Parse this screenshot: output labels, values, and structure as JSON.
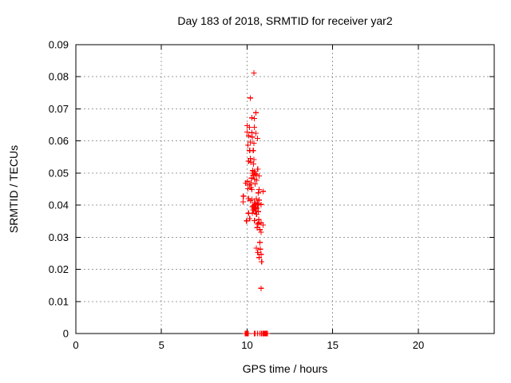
{
  "chart_data": {
    "type": "scatter",
    "title": "Day 183 of 2018, SRMTID for receiver yar2",
    "xlabel": "GPS time / hours",
    "ylabel": "SRMTID / TECUs",
    "xlim": [
      0,
      24.43
    ],
    "ylim": [
      0,
      0.09
    ],
    "x_ticks": [
      0,
      5,
      10,
      15,
      20
    ],
    "x_tick_labels": [
      "0",
      "5",
      "10",
      "15",
      "20"
    ],
    "y_ticks": [
      0,
      0.01,
      0.02,
      0.03,
      0.04,
      0.05,
      0.06,
      0.07,
      0.08,
      0.09
    ],
    "y_tick_labels": [
      "0",
      "0.01",
      "0.02",
      "0.03",
      "0.04",
      "0.05",
      "0.06",
      "0.07",
      "0.08",
      "0.09"
    ],
    "grid": true,
    "legend": "none",
    "marker": "plus",
    "marker_color": "#ff0000",
    "grid_color": "#9c9c9c",
    "axis_color": "#000000",
    "background_color": "#ffffff",
    "series": [
      {
        "name": "SRMTID",
        "points": [
          [
            10.39,
            0.0812
          ],
          [
            10.19,
            0.0734
          ],
          [
            10.51,
            0.0688
          ],
          [
            10.28,
            0.0672
          ],
          [
            10.42,
            0.067
          ],
          [
            10.0,
            0.0648
          ],
          [
            10.14,
            0.0643
          ],
          [
            10.42,
            0.0643
          ],
          [
            10.0,
            0.0628
          ],
          [
            10.28,
            0.0626
          ],
          [
            10.51,
            0.0624
          ],
          [
            10.09,
            0.0616
          ],
          [
            10.31,
            0.0612
          ],
          [
            10.6,
            0.0608
          ],
          [
            10.19,
            0.0597
          ],
          [
            10.39,
            0.0593
          ],
          [
            10.05,
            0.0587
          ],
          [
            10.15,
            0.057
          ],
          [
            10.36,
            0.057
          ],
          [
            10.18,
            0.0546
          ],
          [
            10.4,
            0.0542
          ],
          [
            10.21,
            0.0534
          ],
          [
            10.38,
            0.0528
          ],
          [
            10.08,
            0.0537
          ],
          [
            10.62,
            0.0512
          ],
          [
            10.33,
            0.0508
          ],
          [
            10.42,
            0.0505
          ],
          [
            10.3,
            0.05
          ],
          [
            10.47,
            0.0498
          ],
          [
            10.54,
            0.0495
          ],
          [
            10.7,
            0.0491
          ],
          [
            10.36,
            0.0493
          ],
          [
            9.92,
            0.0469
          ],
          [
            10.25,
            0.0484
          ],
          [
            10.44,
            0.0481
          ],
          [
            10.56,
            0.0477
          ],
          [
            10.02,
            0.0474
          ],
          [
            10.23,
            0.047
          ],
          [
            10.47,
            0.0466
          ],
          [
            10.15,
            0.0463
          ],
          [
            10.23,
            0.0455
          ],
          [
            10.05,
            0.0451
          ],
          [
            10.28,
            0.0449
          ],
          [
            10.7,
            0.0449
          ],
          [
            10.93,
            0.0443
          ],
          [
            10.65,
            0.0438
          ],
          [
            9.78,
            0.0428
          ],
          [
            10.08,
            0.042
          ],
          [
            10.54,
            0.042
          ],
          [
            10.28,
            0.0418
          ],
          [
            10.7,
            0.0416
          ],
          [
            10.19,
            0.0414
          ],
          [
            9.77,
            0.041
          ],
          [
            10.43,
            0.0408
          ],
          [
            10.62,
            0.0405
          ],
          [
            10.51,
            0.0403
          ],
          [
            10.82,
            0.0402
          ],
          [
            10.64,
            0.04
          ],
          [
            10.36,
            0.0397
          ],
          [
            10.31,
            0.0395
          ],
          [
            10.45,
            0.0392
          ],
          [
            10.4,
            0.0391
          ],
          [
            10.58,
            0.039
          ],
          [
            10.47,
            0.0388
          ],
          [
            10.36,
            0.0385
          ],
          [
            10.5,
            0.0382
          ],
          [
            10.65,
            0.038
          ],
          [
            10.08,
            0.0375
          ],
          [
            10.31,
            0.0375
          ],
          [
            10.55,
            0.0372
          ],
          [
            10.15,
            0.0358
          ],
          [
            10.67,
            0.0355
          ],
          [
            10.43,
            0.0352
          ],
          [
            9.97,
            0.0351
          ],
          [
            10.7,
            0.0345
          ],
          [
            10.82,
            0.0345
          ],
          [
            10.62,
            0.0341
          ],
          [
            10.93,
            0.0338
          ],
          [
            10.58,
            0.033
          ],
          [
            10.74,
            0.0324
          ],
          [
            10.82,
            0.0316
          ],
          [
            10.74,
            0.0284
          ],
          [
            10.54,
            0.0266
          ],
          [
            10.77,
            0.0263
          ],
          [
            10.62,
            0.0252
          ],
          [
            10.81,
            0.0247
          ],
          [
            10.7,
            0.0237
          ],
          [
            10.85,
            0.0224
          ],
          [
            10.82,
            0.0141
          ],
          [
            9.88,
            0
          ],
          [
            9.91,
            0
          ],
          [
            9.94,
            0
          ],
          [
            9.97,
            0
          ],
          [
            10.0,
            0
          ],
          [
            10.03,
            0
          ],
          [
            10.06,
            0
          ],
          [
            10.42,
            0
          ],
          [
            10.46,
            0
          ],
          [
            10.6,
            0
          ],
          [
            10.72,
            0
          ],
          [
            10.81,
            0
          ],
          [
            10.86,
            0
          ],
          [
            10.93,
            0
          ],
          [
            10.98,
            0
          ],
          [
            11.03,
            0
          ],
          [
            11.08,
            0
          ],
          [
            11.13,
            0
          ],
          [
            11.18,
            0
          ]
        ]
      }
    ]
  }
}
